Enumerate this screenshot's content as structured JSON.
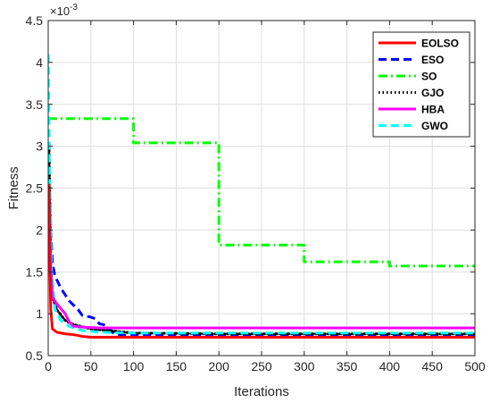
{
  "chart_data": {
    "type": "line",
    "xlabel": "Iterations",
    "ylabel": "Fitness",
    "y_exponent_label": "×10",
    "y_exponent_power": "-3",
    "xlim": [
      0,
      500
    ],
    "ylim": [
      0.5,
      4.5
    ],
    "y_scale_factor": 0.001,
    "xticks": [
      0,
      50,
      100,
      150,
      200,
      250,
      300,
      350,
      400,
      450,
      500
    ],
    "yticks": [
      0.5,
      1,
      1.5,
      2,
      2.5,
      3,
      3.5,
      4,
      4.5
    ],
    "xtick_labels": [
      "0",
      "50",
      "100",
      "150",
      "200",
      "250",
      "300",
      "350",
      "400",
      "450",
      "500"
    ],
    "ytick_labels": [
      "0.5",
      "1",
      "1.5",
      "2",
      "2.5",
      "3",
      "3.5",
      "4",
      "4.5"
    ],
    "grid": true,
    "legend_position": "top-right",
    "series": [
      {
        "name": "EOLSO",
        "color": "#ff0000",
        "dash": "solid",
        "points": [
          [
            1,
            2.55
          ],
          [
            2,
            1.6
          ],
          [
            3,
            1.05
          ],
          [
            5,
            0.82
          ],
          [
            10,
            0.78
          ],
          [
            20,
            0.76
          ],
          [
            30,
            0.75
          ],
          [
            40,
            0.73
          ],
          [
            50,
            0.72
          ],
          [
            100,
            0.72
          ],
          [
            500,
            0.72
          ]
        ]
      },
      {
        "name": "ESO",
        "color": "#0000ff",
        "dash": "dashed",
        "points": [
          [
            1,
            2.9
          ],
          [
            3,
            2.0
          ],
          [
            5,
            1.6
          ],
          [
            8,
            1.45
          ],
          [
            15,
            1.3
          ],
          [
            25,
            1.15
          ],
          [
            35,
            1.05
          ],
          [
            40,
            0.98
          ],
          [
            50,
            0.96
          ],
          [
            55,
            0.94
          ],
          [
            60,
            0.88
          ],
          [
            65,
            0.87
          ],
          [
            70,
            0.85
          ],
          [
            75,
            0.78
          ],
          [
            80,
            0.75
          ],
          [
            100,
            0.74
          ],
          [
            500,
            0.74
          ]
        ]
      },
      {
        "name": "SO",
        "color": "#00ff00",
        "dash": "dashdot",
        "points": [
          [
            0,
            3.33
          ],
          [
            100,
            3.33
          ],
          [
            100,
            3.04
          ],
          [
            200,
            3.04
          ],
          [
            200,
            1.82
          ],
          [
            300,
            1.82
          ],
          [
            300,
            1.62
          ],
          [
            400,
            1.62
          ],
          [
            400,
            1.57
          ],
          [
            500,
            1.57
          ]
        ]
      },
      {
        "name": "GJO",
        "color": "#000000",
        "dash": "dotted",
        "points": [
          [
            1,
            3.0
          ],
          [
            3,
            1.6
          ],
          [
            5,
            1.2
          ],
          [
            10,
            1.05
          ],
          [
            20,
            0.92
          ],
          [
            30,
            0.87
          ],
          [
            50,
            0.82
          ],
          [
            70,
            0.8
          ],
          [
            100,
            0.77
          ],
          [
            200,
            0.76
          ],
          [
            500,
            0.76
          ]
        ]
      },
      {
        "name": "HBA",
        "color": "#ff00ff",
        "dash": "solid",
        "points": [
          [
            1,
            2.45
          ],
          [
            3,
            1.5
          ],
          [
            5,
            1.2
          ],
          [
            10,
            1.12
          ],
          [
            20,
            1.0
          ],
          [
            25,
            0.9
          ],
          [
            30,
            0.85
          ],
          [
            40,
            0.84
          ],
          [
            60,
            0.83
          ],
          [
            500,
            0.83
          ]
        ]
      },
      {
        "name": "GWO",
        "color": "#00ffff",
        "dash": "dashed",
        "points": [
          [
            0,
            4.1
          ],
          [
            2,
            2.5
          ],
          [
            4,
            1.5
          ],
          [
            8,
            1.05
          ],
          [
            15,
            0.92
          ],
          [
            25,
            0.85
          ],
          [
            40,
            0.8
          ],
          [
            60,
            0.78
          ],
          [
            100,
            0.77
          ],
          [
            200,
            0.77
          ],
          [
            500,
            0.77
          ]
        ]
      }
    ]
  }
}
